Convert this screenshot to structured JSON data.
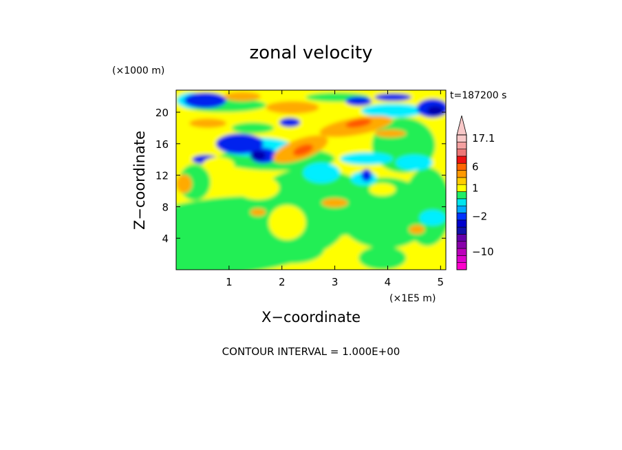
{
  "chart_data": {
    "type": "heatmap",
    "title": "zonal velocity",
    "xlabel": "X−coordinate",
    "ylabel": "Z−coordinate",
    "x_unit": "(×1E5 m)",
    "y_unit": "(×1000 m)",
    "time_label": "t=187200 s",
    "contour_interval_text": "CONTOUR INTERVAL = 1.000E+00",
    "xlim": [
      0,
      5.1
    ],
    "ylim": [
      0,
      22.8
    ],
    "x_ticks": [
      1,
      2,
      3,
      4,
      5
    ],
    "y_ticks": [
      4,
      8,
      12,
      16,
      20
    ],
    "x_tick_labels": [
      "1",
      "2",
      "3",
      "4",
      "5"
    ],
    "y_tick_labels": [
      "4",
      "8",
      "12",
      "16",
      "20"
    ],
    "colorbar": {
      "labels": [
        {
          "text": "17.1",
          "value": 17.1
        },
        {
          "text": "6",
          "value": 6
        },
        {
          "text": "1",
          "value": 1
        },
        {
          "text": "−2",
          "value": -2
        },
        {
          "text": "−10",
          "value": -10
        }
      ],
      "levels": [
        {
          "value": -14,
          "color": "#ff00cc"
        },
        {
          "value": -12,
          "color": "#dd00cc"
        },
        {
          "value": -10,
          "color": "#bb00bb"
        },
        {
          "value": -8,
          "color": "#8800aa"
        },
        {
          "value": -6,
          "color": "#6600aa"
        },
        {
          "value": -4,
          "color": "#1111aa"
        },
        {
          "value": -3,
          "color": "#0000cc"
        },
        {
          "value": -2,
          "color": "#0033ff"
        },
        {
          "value": -1,
          "color": "#00aaff"
        },
        {
          "value": 0,
          "color": "#00e5ee"
        },
        {
          "value": 0.5,
          "color": "#22ee66"
        },
        {
          "value": 1,
          "color": "#ffff00"
        },
        {
          "value": 2,
          "color": "#ffcc00"
        },
        {
          "value": 3,
          "color": "#ff9900"
        },
        {
          "value": 6,
          "color": "#ff6600"
        },
        {
          "value": 8,
          "color": "#ee1111"
        },
        {
          "value": 10,
          "color": "#ee7777"
        },
        {
          "value": 13,
          "color": "#f4a0a0"
        },
        {
          "value": 17.1,
          "color": "#f8c8c8"
        }
      ]
    },
    "field_colors": {
      "blue": "#0022ee",
      "darkblue": "#0000aa",
      "cyan": "#00eeff",
      "green": "#22ee55",
      "yellow": "#ffff00",
      "orange": "#ffaa00",
      "redorange": "#ff5500",
      "red": "#ee2200",
      "pink": "#ee77aa"
    }
  }
}
